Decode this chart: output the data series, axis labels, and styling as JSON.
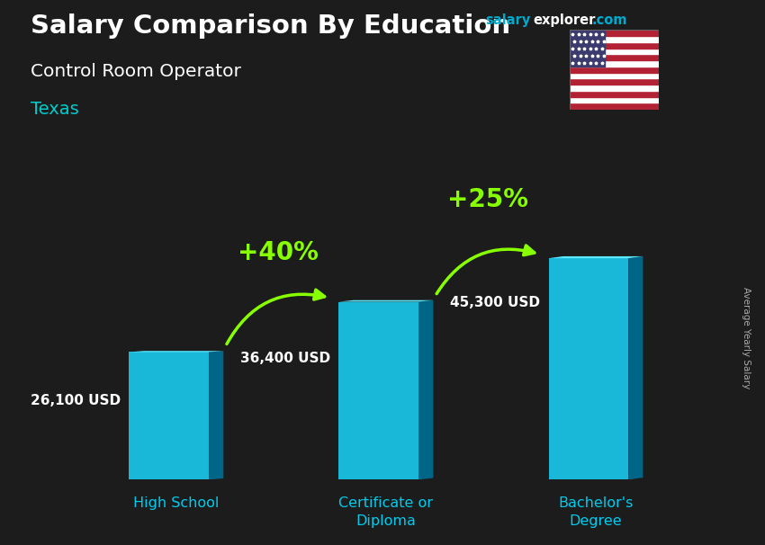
{
  "title1": "Salary Comparison By Education",
  "title2": "Control Room Operator",
  "title3": "Texas",
  "ylabel": "Average Yearly Salary",
  "categories": [
    "High School",
    "Certificate or\nDiploma",
    "Bachelor's\nDegree"
  ],
  "values": [
    26100,
    36400,
    45300
  ],
  "labels": [
    "26,100 USD",
    "36,400 USD",
    "45,300 USD"
  ],
  "pct_labels": [
    "+40%",
    "+25%"
  ],
  "bar_face_color": "#1ab8d8",
  "bar_top_color": "#5ee8ff",
  "bar_side_color": "#0088aa",
  "bar_dark_color": "#006688",
  "bg_color": "#1c1c1c",
  "title1_color": "#ffffff",
  "title2_color": "#ffffff",
  "title3_color": "#00cccc",
  "website_salary_color": "#00aacc",
  "website_explorer_color": "#ffffff",
  "website_com_color": "#00aacc",
  "label_color": "#ffffff",
  "pct_color": "#aaff00",
  "cat_color": "#00ccee",
  "ylabel_color": "#aaaaaa",
  "bar_width": 0.38,
  "bar_spacing": 1.0,
  "ylim_max": 58000,
  "arrow_color": "#88ff00",
  "arrow_lw": 2.5
}
